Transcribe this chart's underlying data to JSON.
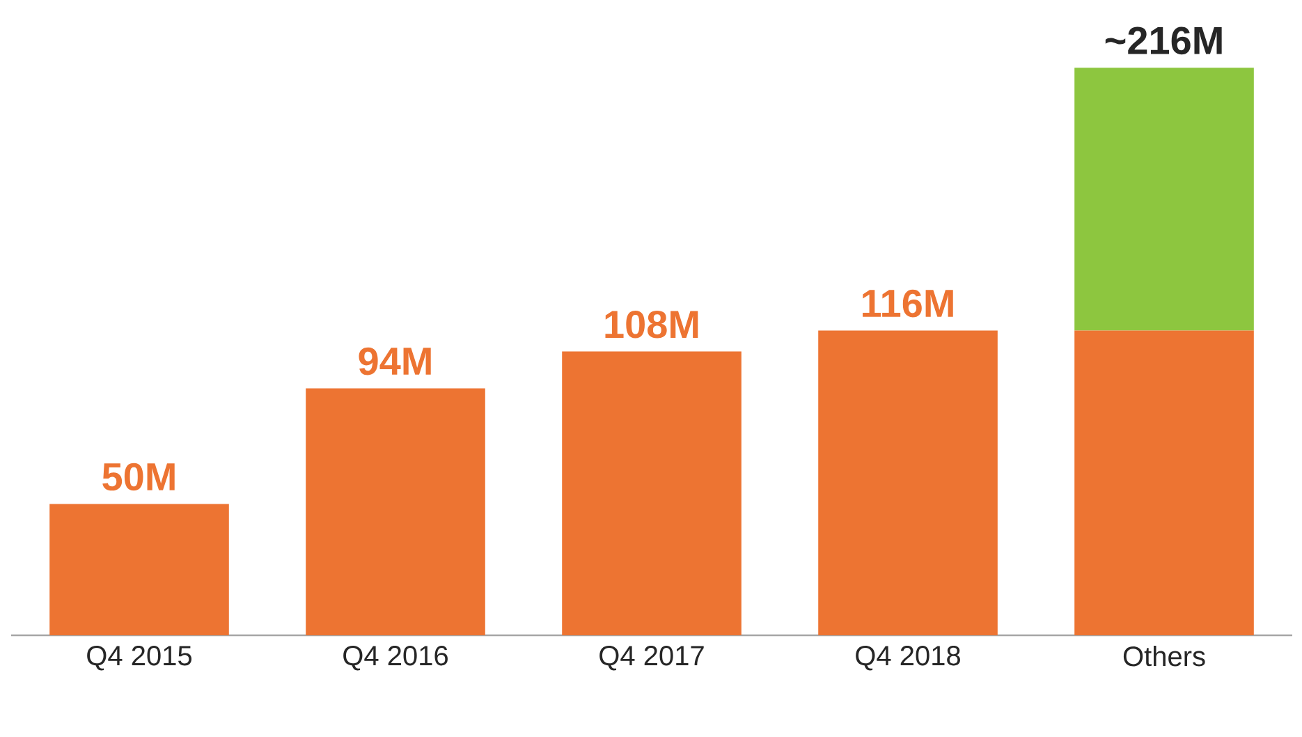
{
  "chart_data": {
    "type": "bar",
    "stacked": true,
    "categories": [
      "Q4 2015",
      "Q4 2016",
      "Q4 2017",
      "Q4 2018",
      "Others"
    ],
    "series": [
      {
        "color": "#ed7432",
        "values": [
          50,
          94,
          108,
          116,
          116
        ],
        "value_labels": [
          "50M",
          "94M",
          "108M",
          "116M",
          null
        ]
      },
      {
        "color": "#8dc63f",
        "values": [
          null,
          null,
          null,
          null,
          100
        ]
      }
    ],
    "totals": [
      null,
      null,
      null,
      null,
      "~216M"
    ]
  }
}
